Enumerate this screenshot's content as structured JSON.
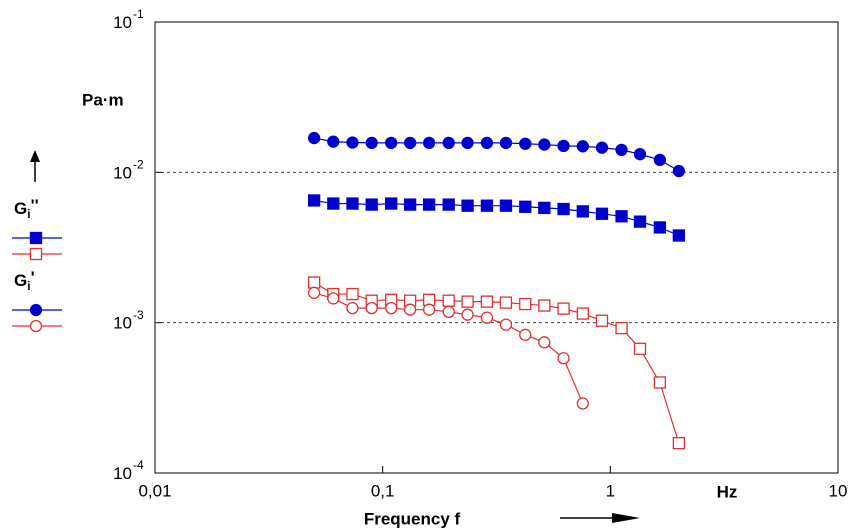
{
  "chart_data": {
    "type": "line",
    "x_label": "Frequency f",
    "x_unit": "Hz",
    "y_unit": "Pa·m",
    "xscale": "log",
    "yscale": "log",
    "grid": "dashed",
    "xlim": [
      0.01,
      10
    ],
    "xticks": [
      {
        "value": 0.01,
        "label": "0,01"
      },
      {
        "value": 0.1,
        "label": "0,1"
      },
      1,
      10
    ],
    "ylim": [
      0.0001,
      0.1
    ],
    "yticks": [
      {
        "value": 0.0001,
        "label": "10",
        "exponent": "-4"
      },
      {
        "value": 0.001,
        "label": "10",
        "exponent": "-3"
      },
      {
        "value": 0.01,
        "label": "10",
        "exponent": "-2"
      },
      {
        "value": 0.1,
        "label": "10",
        "exponent": "-1"
      }
    ],
    "groups": [
      {
        "label": {
          "text": "G",
          "subscript": "i",
          "suffix": "''"
        },
        "series": [
          {
            "color": "#0000cc",
            "marker": "square",
            "filled": true,
            "x": [
              0.05,
              0.0607,
              0.0737,
              0.0895,
              0.109,
              0.132,
              0.16,
              0.195,
              0.236,
              0.287,
              0.348,
              0.423,
              0.513,
              0.623,
              0.757,
              0.919,
              1.12,
              1.35,
              1.65,
              2.0
            ],
            "values": [
              0.0065,
              0.0062,
              0.0062,
              0.0061,
              0.0062,
              0.0061,
              0.0061,
              0.0061,
              0.006,
              0.006,
              0.006,
              0.0059,
              0.0058,
              0.0057,
              0.0055,
              0.0053,
              0.0051,
              0.0047,
              0.0043,
              0.0038
            ]
          },
          {
            "color": "#e03030",
            "marker": "square",
            "filled": false,
            "x": [
              0.05,
              0.0607,
              0.0737,
              0.0895,
              0.109,
              0.132,
              0.16,
              0.195,
              0.236,
              0.287,
              0.348,
              0.423,
              0.513,
              0.623,
              0.757,
              0.919,
              1.12,
              1.35,
              1.65,
              2.0
            ],
            "values": [
              0.00185,
              0.00155,
              0.00155,
              0.0014,
              0.00142,
              0.0014,
              0.00142,
              0.0014,
              0.00138,
              0.00138,
              0.00136,
              0.00133,
              0.0013,
              0.00124,
              0.00115,
              0.00103,
              0.00092,
              0.00067,
              0.0004,
              0.000158
            ]
          }
        ]
      },
      {
        "label": {
          "text": "G",
          "subscript": "i",
          "suffix": "'"
        },
        "series": [
          {
            "color": "#0000cc",
            "marker": "circle",
            "filled": true,
            "x": [
              0.05,
              0.0607,
              0.0737,
              0.0895,
              0.109,
              0.132,
              0.16,
              0.195,
              0.236,
              0.287,
              0.348,
              0.423,
              0.513,
              0.623,
              0.757,
              0.919,
              1.12,
              1.35,
              1.65,
              2.0
            ],
            "values": [
              0.0169,
              0.016,
              0.0158,
              0.0157,
              0.0157,
              0.0157,
              0.0157,
              0.0157,
              0.0157,
              0.0157,
              0.0157,
              0.0155,
              0.0153,
              0.015,
              0.0149,
              0.0146,
              0.0141,
              0.0132,
              0.0121,
              0.0102
            ]
          },
          {
            "color": "#e03030",
            "marker": "circle",
            "filled": false,
            "x": [
              0.05,
              0.0607,
              0.0737,
              0.0895,
              0.109,
              0.132,
              0.16,
              0.195,
              0.236,
              0.287,
              0.348,
              0.423,
              0.513,
              0.623,
              0.757
            ],
            "values": [
              0.00158,
              0.00145,
              0.00125,
              0.00125,
              0.00125,
              0.00122,
              0.00122,
              0.00118,
              0.00113,
              0.00108,
              0.00097,
              0.00083,
              0.00074,
              0.00058,
              0.00029
            ]
          }
        ]
      }
    ]
  }
}
